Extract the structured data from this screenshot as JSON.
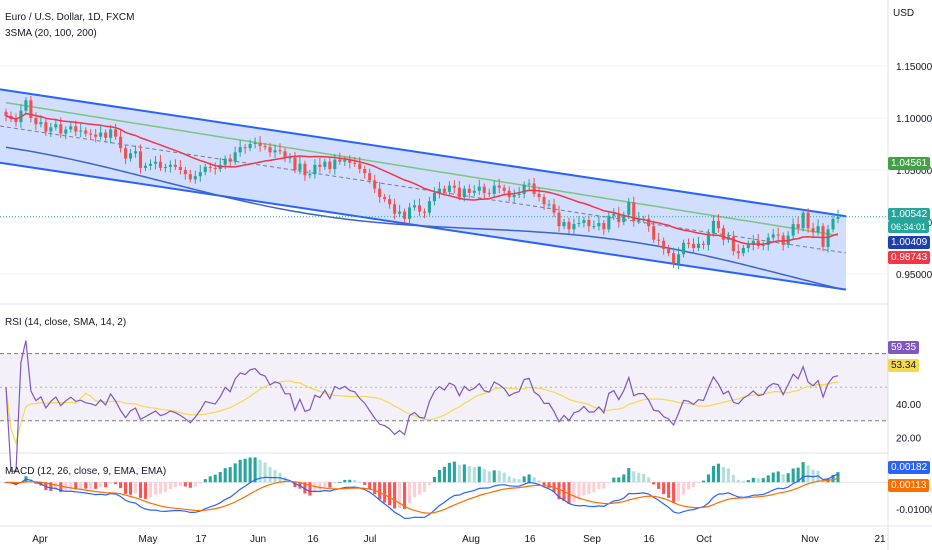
{
  "header": {
    "symbol_line": "Euro / U.S. Dollar, 1D, FXCM",
    "indicator": "3SMA (20, 100, 200)"
  },
  "axis": {
    "currency": "USD"
  },
  "panes": {
    "rsi_label": "RSI (14, close, SMA, 14, 2)",
    "macd_label": "MACD (12, 26, close, 9, EMA, EMA)"
  },
  "badges": {
    "sma200": "1.04561",
    "last": "1.00542",
    "countdown": "06:34:01",
    "sma100": "1.00409",
    "sma20": "0.98743",
    "rsi": "59.35",
    "rsi_sma": "53.34",
    "macd": "0.00182",
    "signal": "0.00113"
  },
  "colors": {
    "up": "#26a69a",
    "down": "#ef5350",
    "sma20": "#f23645",
    "sma100": "#3d63c9",
    "sma200": "#7fc57d",
    "channel": "#2962ff",
    "channel_fill": "#c9d8ff",
    "rsi_line": "#7e57c2",
    "rsi_sma": "#f5d94c",
    "macd_line": "#2962ff",
    "signal_line": "#ff6d00"
  },
  "chart_data": [
    {
      "type": "candlestick",
      "title": "Euro / U.S. Dollar, 1D, FXCM",
      "ylabel": "USD",
      "ylim": [
        0.925,
        1.175
      ],
      "y_ticks": [
        "0.95000",
        "1.00000",
        "1.05000",
        "1.10000",
        "1.15000"
      ],
      "x_ticks": [
        "Apr",
        "May",
        "17",
        "Jun",
        "16",
        "Jul",
        "Aug",
        "16",
        "Sep",
        "16",
        "Oct",
        "Nov",
        "21"
      ],
      "closes": [
        1.102,
        1.099,
        1.096,
        1.107,
        1.117,
        1.1,
        1.094,
        1.096,
        1.087,
        1.091,
        1.094,
        1.085,
        1.089,
        1.092,
        1.087,
        1.088,
        1.085,
        1.084,
        1.082,
        1.086,
        1.081,
        1.089,
        1.082,
        1.071,
        1.061,
        1.066,
        1.068,
        1.052,
        1.054,
        1.056,
        1.058,
        1.052,
        1.053,
        1.055,
        1.053,
        1.05,
        1.046,
        1.041,
        1.044,
        1.048,
        1.053,
        1.052,
        1.051,
        1.055,
        1.061,
        1.058,
        1.067,
        1.072,
        1.071,
        1.075,
        1.076,
        1.073,
        1.072,
        1.067,
        1.069,
        1.068,
        1.062,
        1.062,
        1.05,
        1.056,
        1.045,
        1.046,
        1.055,
        1.053,
        1.058,
        1.051,
        1.06,
        1.058,
        1.06,
        1.057,
        1.056,
        1.051,
        1.047,
        1.04,
        1.032,
        1.024,
        1.022,
        1.017,
        1.008,
        1.01,
        1.003,
        1.014,
        1.016,
        1.01,
        1.009,
        1.02,
        1.028,
        1.032,
        1.029,
        1.035,
        1.033,
        1.024,
        1.032,
        1.028,
        1.03,
        1.034,
        1.028,
        1.027,
        1.035,
        1.033,
        1.03,
        1.024,
        1.026,
        1.027,
        1.036,
        1.037,
        1.027,
        1.024,
        1.017,
        1.017,
        1.009,
        0.996,
        1.0,
        0.993,
        0.998,
        0.999,
        1.002,
        0.996,
        0.996,
        0.999,
        0.993,
        1.006,
        1.008,
        1.0,
        1.007,
        1.019,
        1.001,
        1.003,
        1.003,
        0.996,
        0.983,
        0.982,
        0.974,
        0.97,
        0.96,
        0.969,
        0.98,
        0.979,
        0.975,
        0.979,
        0.978,
        0.989,
        1.001,
        0.994,
        0.983,
        0.986,
        0.972,
        0.97,
        0.975,
        0.978,
        0.982,
        0.977,
        0.978,
        0.985,
        0.988,
        0.987,
        0.978,
        0.987,
        0.998,
        0.994,
        1.009,
        0.994,
        0.99,
        0.996,
        0.976,
        0.993,
        1.003,
        1.005
      ]
    },
    {
      "type": "line",
      "title": "RSI (14, close, SMA, 14, 2)",
      "ylim": [
        15,
        90
      ],
      "y_ticks": [
        "20.00",
        "40.00"
      ],
      "bands": [
        30,
        70
      ],
      "series": [
        {
          "name": "RSI",
          "last": 59.35
        },
        {
          "name": "SMA",
          "last": 53.34
        }
      ]
    },
    {
      "type": "bar",
      "title": "MACD (12, 26, close, 9, EMA, EMA)",
      "y_ticks": [
        "-0.01000"
      ],
      "series": [
        {
          "name": "MACD",
          "last": 0.00182
        },
        {
          "name": "Signal",
          "last": 0.00113
        }
      ]
    }
  ]
}
